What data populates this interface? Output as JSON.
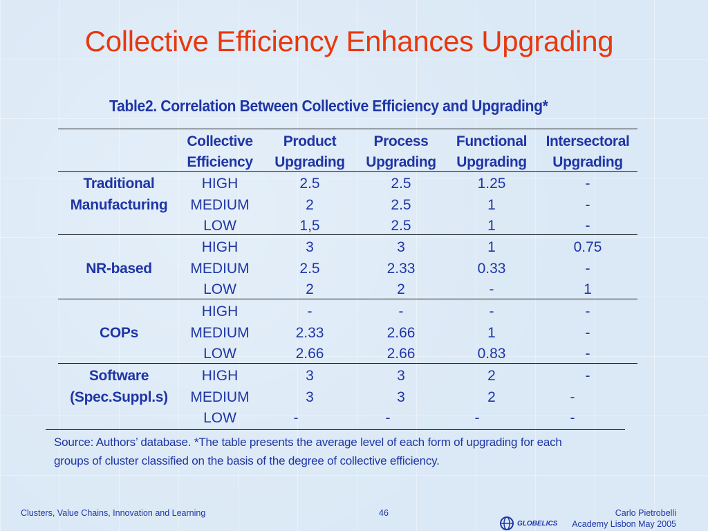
{
  "slide": {
    "title": "Collective Efficiency Enhances Upgrading",
    "caption": "Table2. Correlation Between Collective Efficiency and Upgrading*"
  },
  "table": {
    "headers": [
      {
        "line1": "Collective",
        "line2": "Efficiency"
      },
      {
        "line1": "Product",
        "line2": "Upgrading"
      },
      {
        "line1": "Process",
        "line2": "Upgrading"
      },
      {
        "line1": "Functional",
        "line2": "Upgrading"
      },
      {
        "line1": "Intersectoral",
        "line2": "Upgrading"
      }
    ],
    "groups": [
      {
        "label_lines": [
          "Traditional",
          "Manufacturing"
        ],
        "rows": [
          [
            "HIGH",
            "2.5",
            "2.5",
            "1.25",
            "-"
          ],
          [
            "MEDIUM",
            "2",
            "2.5",
            "1",
            "-"
          ],
          [
            "LOW",
            "1,5",
            "2.5",
            "1",
            "-"
          ]
        ]
      },
      {
        "label_lines": [
          "NR-based"
        ],
        "rows": [
          [
            "HIGH",
            "3",
            "3",
            "1",
            "0.75"
          ],
          [
            "MEDIUM",
            "2.5",
            "2.33",
            "0.33",
            "-"
          ],
          [
            "LOW",
            "2",
            "2",
            "-",
            "1"
          ]
        ]
      },
      {
        "label_lines": [
          "COPs"
        ],
        "rows": [
          [
            "HIGH",
            "-",
            "-",
            "-",
            "-"
          ],
          [
            "MEDIUM",
            "2.33",
            "2.66",
            "1",
            "-"
          ],
          [
            "LOW",
            "2.66",
            "2.66",
            "0.83",
            "-"
          ]
        ]
      },
      {
        "label_lines": [
          "Software",
          "(Spec.Suppl.s)"
        ],
        "rows": [
          [
            "HIGH",
            "3",
            "3",
            "2",
            "-"
          ],
          [
            "MEDIUM",
            "3",
            "3",
            "2",
            "-"
          ],
          [
            "LOW",
            "-",
            "-",
            "-",
            "-"
          ]
        ]
      }
    ]
  },
  "source": {
    "line1": "Source: Authors’ database. *The table presents the average level of each form of upgrading for each",
    "line2": "groups of cluster classified on the basis of the degree of collective efficiency."
  },
  "footer": {
    "left": "Clusters, Value Chains, Innovation and Learning",
    "page": "46",
    "author": "Carlo Pietrobelli",
    "event": "Academy Lisbon May 2005",
    "logo_text": "GLOBELICS"
  }
}
